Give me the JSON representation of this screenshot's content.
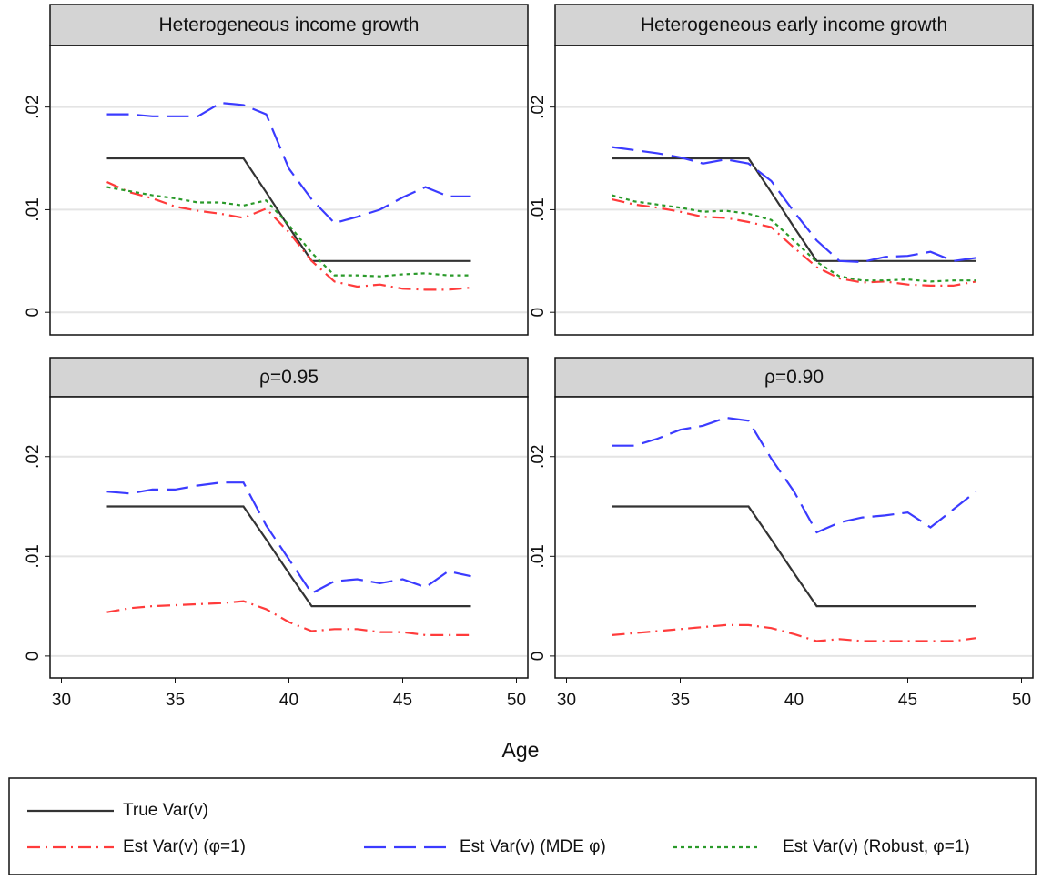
{
  "xlabel": "Age",
  "chart_data": [
    {
      "type": "line",
      "title": "Heterogeneous income growth",
      "x": [
        32,
        33,
        34,
        35,
        36,
        37,
        38,
        39,
        40,
        41,
        42,
        43,
        44,
        45,
        46,
        47,
        48
      ],
      "xlim": [
        29.5,
        50.5
      ],
      "xticks": [
        30,
        35,
        40,
        45,
        50
      ],
      "show_xticks": false,
      "ylim": [
        -0.0022,
        0.026
      ],
      "yticks": [
        0,
        {
          "value": 0.01,
          "label": ".01"
        },
        {
          "value": 0.02,
          "label": ".02"
        }
      ],
      "grid": true,
      "series": [
        {
          "name": "True Var(v)",
          "color": "#333333",
          "dash": "solid",
          "values": [
            0.015,
            0.015,
            0.015,
            0.015,
            0.015,
            0.015,
            0.015,
            0.0117,
            0.0083,
            0.005,
            0.005,
            0.005,
            0.005,
            0.005,
            0.005,
            0.005,
            0.005
          ]
        },
        {
          "name": "Est Var(v) (φ=1)",
          "color": "#ff3b3b",
          "dash": "dashdot",
          "values": [
            0.0127,
            0.0117,
            0.0111,
            0.0103,
            0.0099,
            0.0096,
            0.0092,
            0.0101,
            0.0078,
            0.005,
            0.003,
            0.0025,
            0.0027,
            0.0023,
            0.0022,
            0.0022,
            0.0024
          ]
        },
        {
          "name": "Est Var(v) (MDE φ)",
          "color": "#3b3bff",
          "dash": "longdash",
          "values": [
            0.0193,
            0.0193,
            0.0191,
            0.0191,
            0.0191,
            0.0204,
            0.0202,
            0.0193,
            0.014,
            0.011,
            0.0087,
            0.0093,
            0.01,
            0.0112,
            0.0122,
            0.0113,
            0.0113
          ]
        },
        {
          "name": "Est Var(v) (Robust, φ=1)",
          "color": "#2a9a2a",
          "dash": "dot",
          "values": [
            0.0122,
            0.0118,
            0.0114,
            0.0111,
            0.0107,
            0.0107,
            0.0104,
            0.0109,
            0.0085,
            0.0058,
            0.0036,
            0.0036,
            0.0035,
            0.0037,
            0.0038,
            0.0036,
            0.0036
          ]
        }
      ]
    },
    {
      "type": "line",
      "title": "Heterogeneous early income growth",
      "x": [
        32,
        33,
        34,
        35,
        36,
        37,
        38,
        39,
        40,
        41,
        42,
        43,
        44,
        45,
        46,
        47,
        48
      ],
      "xlim": [
        29.5,
        50.5
      ],
      "xticks": [
        30,
        35,
        40,
        45,
        50
      ],
      "show_xticks": false,
      "ylim": [
        -0.0022,
        0.026
      ],
      "yticks": [
        0,
        {
          "value": 0.01,
          "label": ".01"
        },
        {
          "value": 0.02,
          "label": ".02"
        }
      ],
      "grid": true,
      "series": [
        {
          "name": "True Var(v)",
          "color": "#333333",
          "dash": "solid",
          "values": [
            0.015,
            0.015,
            0.015,
            0.015,
            0.015,
            0.015,
            0.015,
            0.0117,
            0.0083,
            0.005,
            0.005,
            0.005,
            0.005,
            0.005,
            0.005,
            0.005,
            0.005
          ]
        },
        {
          "name": "Est Var(v) (φ=1)",
          "color": "#ff3b3b",
          "dash": "dashdot",
          "values": [
            0.011,
            0.0105,
            0.0102,
            0.0098,
            0.0093,
            0.0092,
            0.0088,
            0.0083,
            0.0063,
            0.0044,
            0.0033,
            0.0029,
            0.003,
            0.0027,
            0.0026,
            0.0026,
            0.003
          ]
        },
        {
          "name": "Est Var(v) (MDE φ)",
          "color": "#3b3bff",
          "dash": "longdash",
          "values": [
            0.0161,
            0.0158,
            0.0155,
            0.0151,
            0.0145,
            0.0149,
            0.0145,
            0.0128,
            0.0098,
            0.007,
            0.005,
            0.0049,
            0.0054,
            0.0055,
            0.0059,
            0.005,
            0.0053
          ]
        },
        {
          "name": "Est Var(v) (Robust, φ=1)",
          "color": "#2a9a2a",
          "dash": "dot",
          "values": [
            0.0114,
            0.0108,
            0.0105,
            0.0102,
            0.0098,
            0.0099,
            0.0096,
            0.009,
            0.007,
            0.0049,
            0.0035,
            0.0031,
            0.0031,
            0.0032,
            0.003,
            0.0031,
            0.0031
          ]
        }
      ]
    },
    {
      "type": "line",
      "title": "ρ=0.95",
      "x": [
        32,
        33,
        34,
        35,
        36,
        37,
        38,
        39,
        40,
        41,
        42,
        43,
        44,
        45,
        46,
        47,
        48
      ],
      "xlim": [
        29.5,
        50.5
      ],
      "xticks": [
        30,
        35,
        40,
        45,
        50
      ],
      "show_xticks": true,
      "ylim": [
        -0.0022,
        0.026
      ],
      "yticks": [
        0,
        {
          "value": 0.01,
          "label": ".01"
        },
        {
          "value": 0.02,
          "label": ".02"
        }
      ],
      "grid": true,
      "series": [
        {
          "name": "True Var(v)",
          "color": "#333333",
          "dash": "solid",
          "values": [
            0.015,
            0.015,
            0.015,
            0.015,
            0.015,
            0.015,
            0.015,
            0.0117,
            0.0083,
            0.005,
            0.005,
            0.005,
            0.005,
            0.005,
            0.005,
            0.005,
            0.005
          ]
        },
        {
          "name": "Est Var(v) (φ=1)",
          "color": "#ff3b3b",
          "dash": "dashdot",
          "values": [
            0.0044,
            0.0048,
            0.005,
            0.0051,
            0.0052,
            0.0053,
            0.0055,
            0.0047,
            0.0034,
            0.0025,
            0.0027,
            0.0027,
            0.0024,
            0.0024,
            0.0021,
            0.0021,
            0.0021
          ]
        },
        {
          "name": "Est Var(v) (MDE φ)",
          "color": "#3b3bff",
          "dash": "longdash",
          "values": [
            0.0165,
            0.0163,
            0.0167,
            0.0167,
            0.0171,
            0.0174,
            0.0174,
            0.0131,
            0.0097,
            0.0063,
            0.0075,
            0.0077,
            0.0073,
            0.0077,
            0.0069,
            0.0085,
            0.008
          ]
        }
      ]
    },
    {
      "type": "line",
      "title": "ρ=0.90",
      "x": [
        32,
        33,
        34,
        35,
        36,
        37,
        38,
        39,
        40,
        41,
        42,
        43,
        44,
        45,
        46,
        47,
        48
      ],
      "xlim": [
        29.5,
        50.5
      ],
      "xticks": [
        30,
        35,
        40,
        45,
        50
      ],
      "show_xticks": true,
      "ylim": [
        -0.0022,
        0.026
      ],
      "yticks": [
        0,
        {
          "value": 0.01,
          "label": ".01"
        },
        {
          "value": 0.02,
          "label": ".02"
        }
      ],
      "grid": true,
      "series": [
        {
          "name": "True Var(v)",
          "color": "#333333",
          "dash": "solid",
          "values": [
            0.015,
            0.015,
            0.015,
            0.015,
            0.015,
            0.015,
            0.015,
            0.0117,
            0.0083,
            0.005,
            0.005,
            0.005,
            0.005,
            0.005,
            0.005,
            0.005,
            0.005
          ]
        },
        {
          "name": "Est Var(v) (φ=1)",
          "color": "#ff3b3b",
          "dash": "dashdot",
          "values": [
            0.0021,
            0.0023,
            0.0025,
            0.0027,
            0.0029,
            0.0031,
            0.0031,
            0.0028,
            0.0022,
            0.0015,
            0.0017,
            0.0015,
            0.0015,
            0.0015,
            0.0015,
            0.0015,
            0.0018
          ]
        },
        {
          "name": "Est Var(v) (MDE φ)",
          "color": "#3b3bff",
          "dash": "longdash",
          "values": [
            0.0211,
            0.0211,
            0.0218,
            0.0227,
            0.0231,
            0.0239,
            0.0236,
            0.0198,
            0.0165,
            0.0124,
            0.0134,
            0.0139,
            0.0141,
            0.0144,
            0.0129,
            0.0147,
            0.0165
          ]
        }
      ]
    }
  ]
}
